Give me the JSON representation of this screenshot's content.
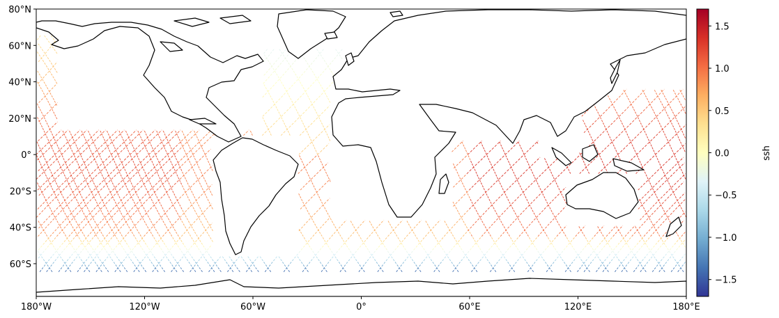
{
  "map": {
    "lat_labels": [
      "80°N",
      "60°N",
      "40°N",
      "20°N",
      "0°",
      "20°S",
      "40°S",
      "60°S"
    ],
    "lon_labels": [
      "180°W",
      "120°W",
      "60°W",
      "0°",
      "60°E",
      "120°E",
      "180°E"
    ],
    "extent": {
      "lon": [
        -180,
        180
      ],
      "lat": [
        -78,
        80
      ]
    },
    "track_passes": 44
  },
  "colorbar": {
    "label": "ssh",
    "ticks": [
      "1.5",
      "1.0",
      "0.5",
      "0.0",
      "−0.5",
      "−1.0",
      "−1.5"
    ],
    "range": [
      -1.7,
      1.7
    ],
    "colormap": [
      "#313695",
      "#4575b4",
      "#74add1",
      "#abd9e9",
      "#e0f3f8",
      "#ffffbf",
      "#fee090",
      "#fdae61",
      "#f46d43",
      "#d73027",
      "#a50026"
    ]
  }
}
